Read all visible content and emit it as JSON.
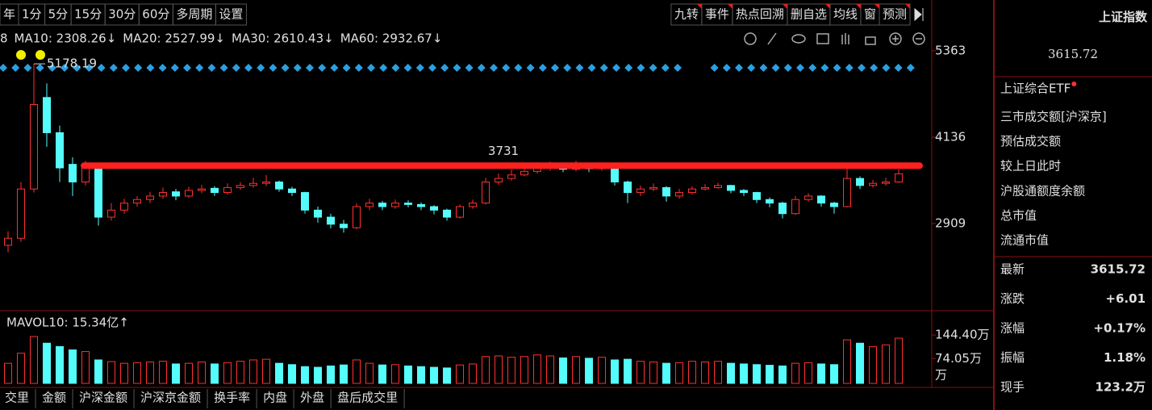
{
  "toolbar": {
    "periods": [
      "年",
      "1分",
      "5分",
      "15分",
      "30分",
      "60分",
      "多周期",
      "设置"
    ],
    "tools": [
      "九转",
      "事件",
      "热点回溯",
      "删自选",
      "均线",
      "窗",
      "预测"
    ]
  },
  "chart_data": {
    "type": "candlestick",
    "ma_labels": [
      {
        "text": "8",
        "color": "#e8e8e8"
      },
      {
        "text": "MA10: 2308.26↓",
        "color": "#f0e040"
      },
      {
        "text": "MA20: 2527.99↓",
        "color": "#e060e0"
      },
      {
        "text": "MA30: 2610.43↓",
        "color": "#20d020"
      },
      {
        "text": "MA60: 2932.67↓",
        "color": "#30a8e0"
      }
    ],
    "ylim": [
      1728,
      5420
    ],
    "yticks": [
      5363,
      4136,
      2909
    ],
    "level": 3731,
    "level_color": "#ff2020",
    "up_color": "#ff3030",
    "down_color": "#54fcfc",
    "candles": [
      [
        2600,
        2700,
        2800,
        2500
      ],
      [
        2700,
        3400,
        3500,
        2650
      ],
      [
        3400,
        4600,
        5178.19,
        3350
      ],
      [
        4700,
        4200,
        4900,
        4000
      ],
      [
        4200,
        3700,
        4300,
        3500
      ],
      [
        3750,
        3500,
        3850,
        3300
      ],
      [
        3500,
        3750,
        3800,
        3450
      ],
      [
        3700,
        3000,
        3720,
        2880
      ],
      [
        3000,
        3100,
        3200,
        2950
      ],
      [
        3100,
        3200,
        3260,
        3050
      ],
      [
        3200,
        3250,
        3300,
        3150
      ],
      [
        3250,
        3300,
        3360,
        3200
      ],
      [
        3300,
        3350,
        3420,
        3260
      ],
      [
        3360,
        3300,
        3400,
        3240
      ],
      [
        3300,
        3380,
        3430,
        3270
      ],
      [
        3380,
        3400,
        3460,
        3340
      ],
      [
        3410,
        3350,
        3440,
        3300
      ],
      [
        3350,
        3420,
        3480,
        3320
      ],
      [
        3420,
        3450,
        3500,
        3390
      ],
      [
        3450,
        3480,
        3560,
        3420
      ],
      [
        3480,
        3500,
        3600,
        3440
      ],
      [
        3500,
        3400,
        3520,
        3360
      ],
      [
        3400,
        3350,
        3430,
        3300
      ],
      [
        3350,
        3100,
        3360,
        3050
      ],
      [
        3100,
        3000,
        3150,
        2920
      ],
      [
        3000,
        2900,
        3050,
        2840
      ],
      [
        2900,
        2850,
        2960,
        2780
      ],
      [
        2850,
        3150,
        3200,
        2830
      ],
      [
        3150,
        3200,
        3260,
        3100
      ],
      [
        3200,
        3150,
        3230,
        3100
      ],
      [
        3150,
        3200,
        3250,
        3120
      ],
      [
        3200,
        3180,
        3240,
        3140
      ],
      [
        3180,
        3150,
        3210,
        3100
      ],
      [
        3150,
        3100,
        3170,
        3040
      ],
      [
        3100,
        3000,
        3120,
        2950
      ],
      [
        3000,
        3150,
        3180,
        2980
      ],
      [
        3150,
        3200,
        3250,
        3120
      ],
      [
        3200,
        3500,
        3560,
        3180
      ],
      [
        3500,
        3550,
        3620,
        3460
      ],
      [
        3550,
        3600,
        3680,
        3520
      ],
      [
        3600,
        3650,
        3760,
        3580
      ],
      [
        3650,
        3700,
        3780,
        3620
      ],
      [
        3700,
        3720,
        3790,
        3660
      ],
      [
        3720,
        3680,
        3750,
        3640
      ],
      [
        3680,
        3700,
        3800,
        3650
      ],
      [
        3700,
        3690,
        3760,
        3640
      ],
      [
        3690,
        3720,
        3780,
        3660
      ],
      [
        3720,
        3500,
        3730,
        3450
      ],
      [
        3500,
        3350,
        3520,
        3200
      ],
      [
        3350,
        3400,
        3450,
        3300
      ],
      [
        3400,
        3420,
        3480,
        3370
      ],
      [
        3420,
        3300,
        3440,
        3220
      ],
      [
        3300,
        3350,
        3400,
        3260
      ],
      [
        3350,
        3400,
        3440,
        3320
      ],
      [
        3400,
        3420,
        3470,
        3380
      ],
      [
        3420,
        3450,
        3490,
        3400
      ],
      [
        3450,
        3380,
        3460,
        3340
      ],
      [
        3380,
        3350,
        3400,
        3300
      ],
      [
        3350,
        3250,
        3360,
        3200
      ],
      [
        3250,
        3200,
        3280,
        3140
      ],
      [
        3200,
        3050,
        3220,
        2980
      ],
      [
        3050,
        3250,
        3300,
        3030
      ],
      [
        3250,
        3300,
        3340,
        3220
      ],
      [
        3300,
        3200,
        3310,
        3150
      ],
      [
        3200,
        3150,
        3220,
        3050
      ],
      [
        3150,
        3550,
        3750,
        3140
      ],
      [
        3550,
        3450,
        3580,
        3400
      ],
      [
        3450,
        3480,
        3530,
        3420
      ],
      [
        3480,
        3500,
        3560,
        3450
      ],
      [
        3500,
        3615.72,
        3680,
        3490
      ]
    ],
    "volume": {
      "label": "MAVOL10: 15.34亿↑",
      "ylim": [
        0,
        180.8
      ],
      "yticks": [
        {
          "value": 144.4,
          "label": "144.40万"
        },
        {
          "value": 74.05,
          "label": "74.05万"
        }
      ],
      "unit": "万",
      "values": [
        60,
        90,
        140,
        120,
        110,
        100,
        95,
        70,
        65,
        60,
        62,
        64,
        66,
        58,
        60,
        64,
        58,
        62,
        66,
        70,
        72,
        60,
        56,
        50,
        48,
        52,
        55,
        70,
        60,
        55,
        56,
        52,
        50,
        48,
        46,
        55,
        58,
        80,
        82,
        78,
        80,
        85,
        82,
        76,
        80,
        75,
        78,
        70,
        72,
        66,
        64,
        60,
        62,
        66,
        64,
        66,
        60,
        58,
        56,
        54,
        52,
        60,
        62,
        58,
        56,
        130,
        120,
        110,
        115,
        135
      ]
    }
  },
  "bottom_tabs": [
    "交里",
    "金额",
    "沪深金额",
    "沪深京金额",
    "换手率",
    "内盘",
    "外盘",
    "盘后成交里"
  ],
  "panel": {
    "title": "上证指数",
    "price": "3615.72",
    "etf": "上证综合ETF",
    "items": [
      "三市成交额[沪深京]",
      "预估成交额",
      "较上日此时",
      "沪股通额度余额",
      "总市值",
      "流通市值"
    ],
    "rows": [
      {
        "label": "最新",
        "value": "3615.72",
        "color": "#ff4040"
      },
      {
        "label": "涨跌",
        "value": "+6.01",
        "color": "#ff4040"
      },
      {
        "label": "涨幅",
        "value": "+0.17%",
        "color": "#ff4040"
      },
      {
        "label": "振幅",
        "value": "1.18%",
        "color": "#54fcfc"
      },
      {
        "label": "现手",
        "value": "123.2万",
        "color": "#f0e040"
      }
    ]
  }
}
